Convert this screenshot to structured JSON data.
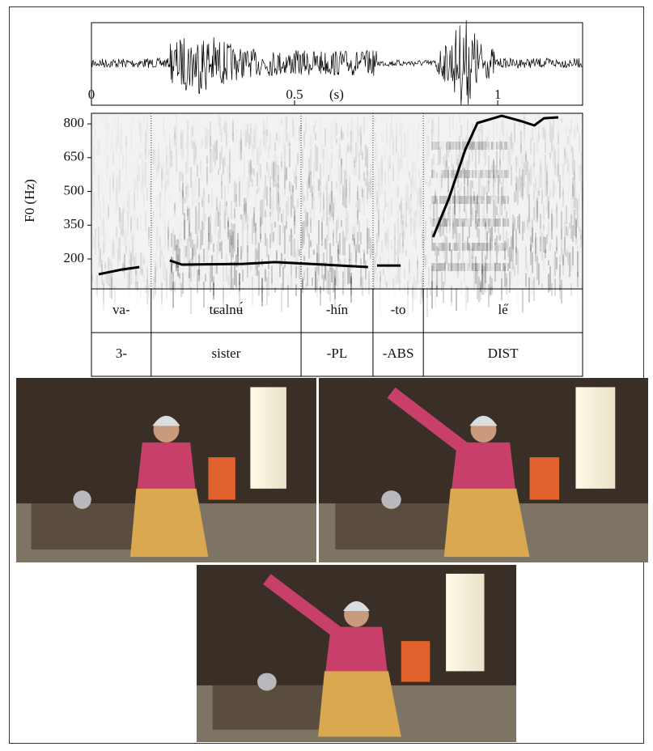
{
  "chart_data": {
    "type": "line",
    "x_label": "(s)",
    "y_label": "F0 (Hz)",
    "xlim": [
      0,
      1.209
    ],
    "xticks": [
      0,
      0.5,
      1
    ],
    "ylim": [
      67,
      847
    ],
    "yticks": [
      200,
      350,
      500,
      650,
      800
    ],
    "x": [
      0.018,
      0.074,
      0.118,
      null,
      0.193,
      0.223,
      0.373,
      0.452,
      0.572,
      0.681,
      null,
      0.703,
      0.761,
      null,
      0.841,
      0.88,
      0.92,
      0.95,
      1.01,
      1.06,
      1.09,
      1.114,
      1.149
    ],
    "series": [
      {
        "color": "#000000",
        "values": [
          132,
          153,
          164,
          null,
          193,
          175,
          178,
          186,
          175,
          164,
          null,
          171,
          171,
          null,
          297,
          469,
          685,
          804,
          836,
          811,
          793,
          825,
          829
        ]
      }
    ],
    "boundaries": [
      0.147,
      0.516,
      0.693,
      0.817
    ]
  },
  "interlinear": {
    "rows": [
      [
        "va-",
        "tɕalnʉ́",
        "-hín",
        "-to",
        "le̋"
      ],
      [
        "3-",
        "sister",
        "-PL",
        "-ABS",
        "DIST"
      ]
    ]
  }
}
